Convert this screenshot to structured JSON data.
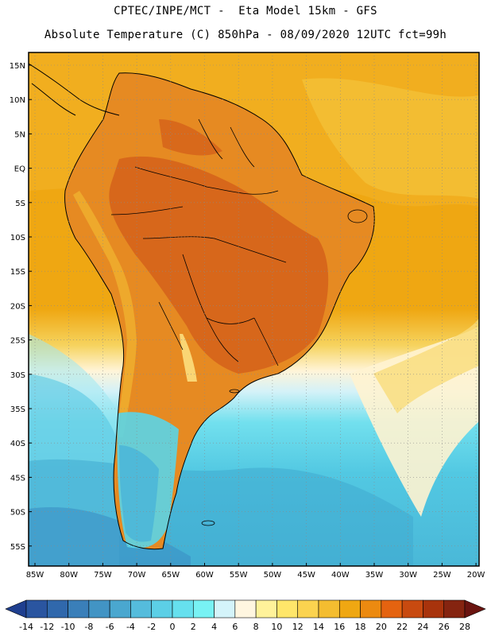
{
  "header": {
    "line1": "CPTEC/INPE/MCT -  Eta Model 15km - GFS",
    "line2": "Absolute Temperature (C) 850hPa - 08/09/2020 12UTC fct=99h"
  },
  "axes": {
    "lat_labels": [
      "15N",
      "10N",
      "5N",
      "EQ",
      "5S",
      "10S",
      "15S",
      "20S",
      "25S",
      "30S",
      "35S",
      "40S",
      "45S",
      "50S",
      "55S"
    ],
    "lon_labels": [
      "85W",
      "80W",
      "75W",
      "70W",
      "65W",
      "60W",
      "55W",
      "50W",
      "45W",
      "40W",
      "35W",
      "30W",
      "25W",
      "20W"
    ]
  },
  "colorbar": {
    "labels": [
      "-14",
      "-12",
      "-10",
      "-8",
      "-6",
      "-4",
      "-2",
      "0",
      "2",
      "4",
      "6",
      "8",
      "10",
      "12",
      "14",
      "16",
      "18",
      "20",
      "22",
      "24",
      "26",
      "28"
    ],
    "colors": [
      "#1f3f8f",
      "#2a55a0",
      "#3068ac",
      "#3a7fb9",
      "#4294c4",
      "#4aa7cf",
      "#55bcdc",
      "#5ccfe6",
      "#66e0ee",
      "#78f2f4",
      "#d4f4fa",
      "#fff6e0",
      "#fff29a",
      "#ffe66a",
      "#fbd34f",
      "#f4bd30",
      "#efa712",
      "#ec8a10",
      "#e46310",
      "#c84a10",
      "#a8330c",
      "#852410",
      "#6a1410"
    ]
  },
  "colors": {
    "frame": "#000000",
    "warm": "#efa712",
    "hot": "#d8640e",
    "cold": "#4ec4dd"
  }
}
